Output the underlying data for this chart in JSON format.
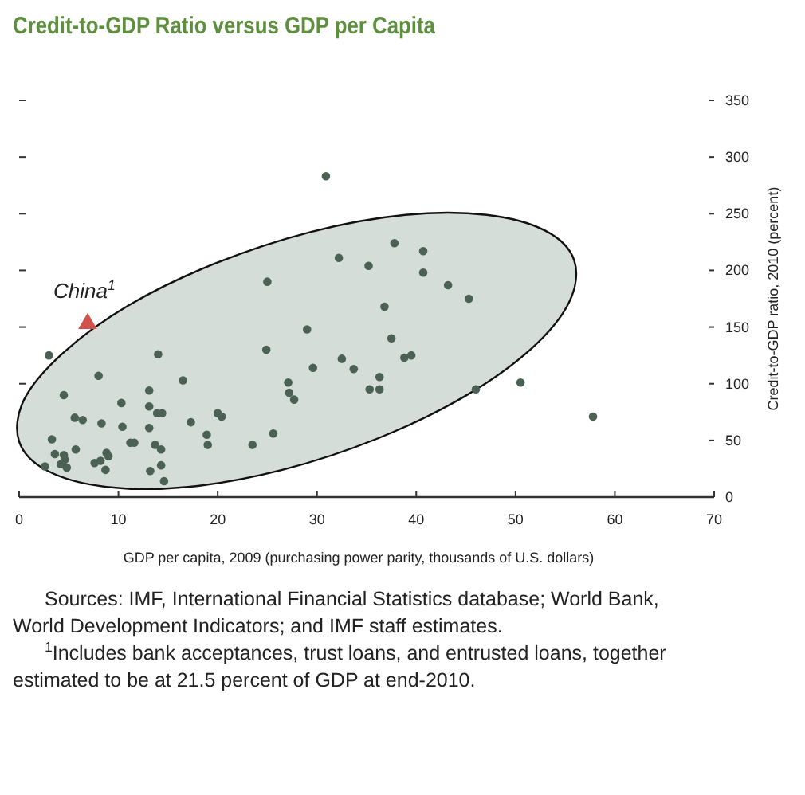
{
  "chart_data": {
    "type": "scatter",
    "title": "Credit-to-GDP Ratio versus GDP per Capita",
    "xlabel": "GDP per capita, 2009 (purchasing power parity, thousands of U.S. dollars)",
    "ylabel": "Credit-to-GDP ratio, 2010 (percent)",
    "xlim": [
      0,
      70
    ],
    "xticks": [
      0,
      10,
      20,
      30,
      40,
      50,
      60,
      70
    ],
    "ylim": [
      0,
      350
    ],
    "yticks": [
      0,
      50,
      100,
      150,
      200,
      250,
      300,
      350
    ],
    "grid": false,
    "series": [
      {
        "type": "area",
        "color": "#d4ddd7",
        "x": [
          55.9,
          55.4,
          51.6,
          44.9,
          36.2,
          26.5,
          17.0,
          8.8,
          2.9,
          0.0,
          0.5,
          4.4,
          11.0,
          19.7,
          29.4,
          38.9,
          47.1,
          53.0
        ],
        "values": [
          209,
          172,
          131,
          89,
          52,
          24,
          9,
          9,
          23,
          49,
          86,
          127,
          169,
          206,
          234,
          249,
          249,
          235
        ]
      },
      {
        "color": "#4b6153",
        "marker": "circle",
        "x": [
          30.9,
          37.8,
          40.7,
          40.7,
          43.2,
          45.3,
          32.2,
          35.2,
          25.0,
          36.8,
          29.0,
          37.5,
          24.9,
          32.5,
          38.8,
          39.5,
          29.6,
          33.7,
          36.3,
          35.3,
          36.3,
          27.1,
          27.2,
          27.7,
          46.0,
          50.5,
          57.8,
          25.6,
          23.5,
          20.0,
          20.4,
          18.9,
          19.0,
          17.3,
          16.5,
          14.0,
          13.1,
          13.1,
          13.9,
          14.4,
          13.1,
          13.7,
          14.3,
          14.3,
          13.2,
          14.6,
          10.3,
          10.4,
          11.2,
          11.6,
          8.0,
          8.3,
          8.8,
          9.0,
          8.2,
          7.6,
          8.7,
          5.6,
          6.4,
          4.5,
          5.7,
          3.0,
          3.3,
          3.6,
          4.5,
          4.6,
          4.2,
          4.8,
          2.6
        ],
        "values": [
          283,
          224,
          217,
          198,
          187,
          175,
          211,
          204,
          190,
          168,
          148,
          140,
          130,
          122,
          123,
          125,
          114,
          113,
          106,
          95,
          95,
          101,
          92,
          86,
          95,
          101,
          71,
          56,
          46,
          74,
          71,
          55,
          46,
          66,
          103,
          126,
          94,
          80,
          74,
          74,
          61,
          46,
          42,
          28,
          23,
          14,
          83,
          62,
          48,
          48,
          107,
          65,
          39,
          36,
          32,
          30,
          24,
          70,
          68,
          90,
          42,
          125,
          51,
          38,
          37,
          33,
          29,
          26,
          27
        ]
      },
      {
        "name": "China$^{1}$",
        "color": "#d0524a",
        "marker": "triangle",
        "x": [
          6.9
        ],
        "values": [
          153
        ]
      }
    ],
    "annotations": [
      "Sources: IMF, International Financial Statistics database; World Bank, World Development Indicators; and IMF staff estimates.",
      "$^{1}$Includes bank acceptances, trust loans, and entrusted loans, together estimated to be at 21.5 percent of GDP at end-2010."
    ]
  }
}
